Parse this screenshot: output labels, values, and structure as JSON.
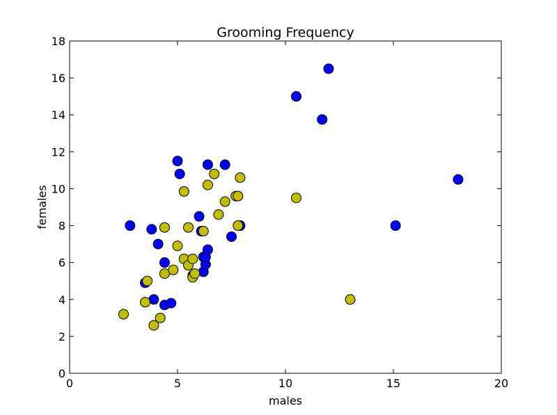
{
  "chart_data": {
    "type": "scatter",
    "title": "Grooming Frequency",
    "xlabel": "males",
    "ylabel": "females",
    "xlim": [
      0,
      20
    ],
    "ylim": [
      0,
      18
    ],
    "xticks": [
      "0",
      "5",
      "10",
      "15",
      "20"
    ],
    "yticks": [
      "0",
      "2",
      "4",
      "6",
      "8",
      "10",
      "12",
      "14",
      "16",
      "18"
    ],
    "grid": false,
    "series": [
      {
        "color": "#0000ff",
        "points": [
          [
            2.8,
            8.0
          ],
          [
            3.5,
            4.9
          ],
          [
            3.8,
            7.8
          ],
          [
            3.9,
            4.0
          ],
          [
            4.1,
            7.0
          ],
          [
            4.4,
            6.0
          ],
          [
            4.4,
            3.7
          ],
          [
            4.7,
            3.8
          ],
          [
            5.0,
            11.5
          ],
          [
            5.1,
            10.8
          ],
          [
            5.7,
            5.3
          ],
          [
            6.0,
            8.5
          ],
          [
            6.1,
            7.7
          ],
          [
            6.2,
            5.5
          ],
          [
            6.2,
            6.3
          ],
          [
            6.3,
            5.9
          ],
          [
            6.4,
            6.7
          ],
          [
            6.3,
            6.3
          ],
          [
            6.4,
            11.3
          ],
          [
            7.2,
            11.3
          ],
          [
            7.5,
            7.4
          ],
          [
            7.9,
            8.0
          ],
          [
            10.5,
            15.0
          ],
          [
            11.7,
            13.75
          ],
          [
            12.0,
            16.5
          ],
          [
            15.1,
            8.0
          ],
          [
            18.0,
            10.5
          ]
        ]
      },
      {
        "color": "#bfbf00",
        "points": [
          [
            2.5,
            3.2
          ],
          [
            3.5,
            3.85
          ],
          [
            3.6,
            5.0
          ],
          [
            3.9,
            2.6
          ],
          [
            4.2,
            3.0
          ],
          [
            4.4,
            5.4
          ],
          [
            4.4,
            7.9
          ],
          [
            4.8,
            5.6
          ],
          [
            5.0,
            6.9
          ],
          [
            5.3,
            6.2
          ],
          [
            5.3,
            9.85
          ],
          [
            5.5,
            5.85
          ],
          [
            5.5,
            7.9
          ],
          [
            5.7,
            5.2
          ],
          [
            5.7,
            6.2
          ],
          [
            5.8,
            5.4
          ],
          [
            6.2,
            7.7
          ],
          [
            6.4,
            10.2
          ],
          [
            6.7,
            10.8
          ],
          [
            6.9,
            8.6
          ],
          [
            7.2,
            9.3
          ],
          [
            7.7,
            9.6
          ],
          [
            7.8,
            9.6
          ],
          [
            7.8,
            8.0
          ],
          [
            7.9,
            10.6
          ],
          [
            10.5,
            9.5
          ],
          [
            13.0,
            4.0
          ]
        ]
      }
    ]
  }
}
